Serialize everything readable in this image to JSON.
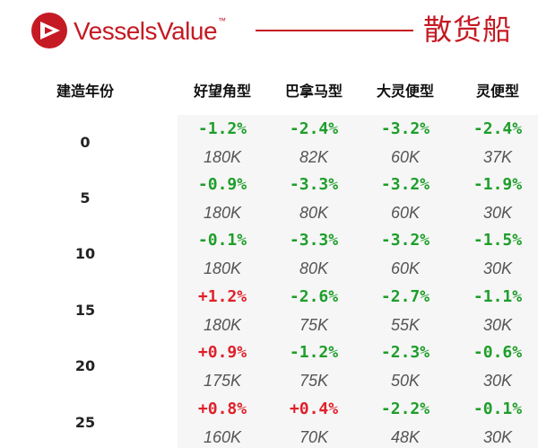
{
  "brand": {
    "name": "VesselsValue",
    "trademark": "™",
    "accent_color": "#c51a23",
    "logo_icon": "vesselsvalue-triangle-logo-icon"
  },
  "page_title": "散货船",
  "table": {
    "header_row_label": "建造年份",
    "columns": [
      "好望角型",
      "巴拿马型",
      "大灵便型",
      "灵便型"
    ],
    "rows": [
      {
        "age": "0",
        "cells": [
          {
            "change": "-1.2%",
            "value": "180K"
          },
          {
            "change": "-2.4%",
            "value": "82K"
          },
          {
            "change": "-3.2%",
            "value": "60K"
          },
          {
            "change": "-2.4%",
            "value": "37K"
          }
        ]
      },
      {
        "age": "5",
        "cells": [
          {
            "change": "-0.9%",
            "value": "180K"
          },
          {
            "change": "-3.3%",
            "value": "80K"
          },
          {
            "change": "-3.2%",
            "value": "60K"
          },
          {
            "change": "-1.9%",
            "value": "30K"
          }
        ]
      },
      {
        "age": "10",
        "cells": [
          {
            "change": "-0.1%",
            "value": "180K"
          },
          {
            "change": "-3.3%",
            "value": "80K"
          },
          {
            "change": "-3.2%",
            "value": "60K"
          },
          {
            "change": "-1.5%",
            "value": "30K"
          }
        ]
      },
      {
        "age": "15",
        "cells": [
          {
            "change": "+1.2%",
            "value": "180K"
          },
          {
            "change": "-2.6%",
            "value": "75K"
          },
          {
            "change": "-2.7%",
            "value": "55K"
          },
          {
            "change": "-1.1%",
            "value": "30K"
          }
        ]
      },
      {
        "age": "20",
        "cells": [
          {
            "change": "+0.9%",
            "value": "175K"
          },
          {
            "change": "-1.2%",
            "value": "75K"
          },
          {
            "change": "-2.3%",
            "value": "50K"
          },
          {
            "change": "-0.6%",
            "value": "30K"
          }
        ]
      },
      {
        "age": "25",
        "cells": [
          {
            "change": "+0.8%",
            "value": "160K"
          },
          {
            "change": "+0.4%",
            "value": "70K"
          },
          {
            "change": "-2.2%",
            "value": "48K"
          },
          {
            "change": "-0.1%",
            "value": "30K"
          }
        ]
      }
    ],
    "colors": {
      "negative_change": "#1e9e2a",
      "positive_change": "#e0202a",
      "value_text": "#555555",
      "data_background": "#f6f6f6"
    }
  }
}
